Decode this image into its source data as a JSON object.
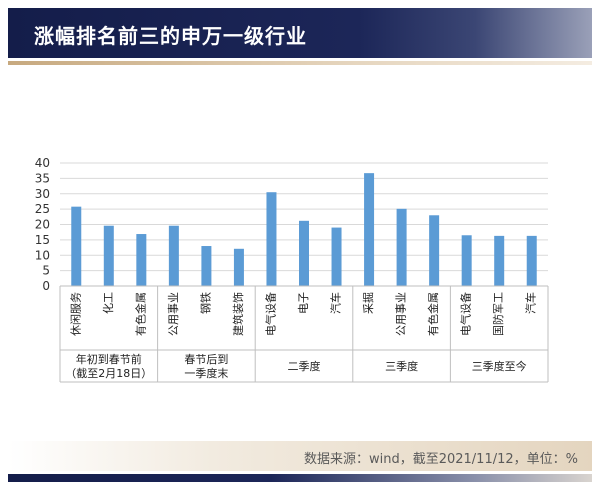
{
  "header": {
    "title": "涨幅排名前三的申万一级行业"
  },
  "footer": {
    "source": "数据来源：wind，截至2021/11/12，单位：%"
  },
  "colors": {
    "bar": "#5b9bd5",
    "header_dark": "#1a2456",
    "accent_gold": "#c7a97f"
  },
  "chart_data": {
    "type": "bar",
    "title": "",
    "xlabel": "",
    "ylabel": "",
    "ylim": [
      0,
      40
    ],
    "yticks": [
      0,
      5,
      10,
      15,
      20,
      25,
      30,
      35,
      40
    ],
    "grid": true,
    "legend": "none",
    "categories": [
      "休闲服务",
      "化工",
      "有色金属",
      "公用事业",
      "钢铁",
      "建筑装饰",
      "电气设备",
      "电子",
      "汽车",
      "采掘",
      "公用事业",
      "有色金属",
      "电气设备",
      "国防军工",
      "汽车"
    ],
    "values": [
      25.8,
      19.6,
      16.9,
      19.6,
      13,
      12.1,
      30.5,
      21.2,
      19,
      36.7,
      25.1,
      23,
      16.5,
      16.3,
      16.3
    ],
    "groups": [
      {
        "label_lines": [
          "年初到春节前",
          "（截至2月18日）"
        ],
        "start": 0,
        "count": 3
      },
      {
        "label_lines": [
          "春节后到",
          "一季度末"
        ],
        "start": 3,
        "count": 3
      },
      {
        "label_lines": [
          "二季度"
        ],
        "start": 6,
        "count": 3
      },
      {
        "label_lines": [
          "三季度"
        ],
        "start": 9,
        "count": 3
      },
      {
        "label_lines": [
          "三季度至今"
        ],
        "start": 12,
        "count": 3
      }
    ]
  }
}
